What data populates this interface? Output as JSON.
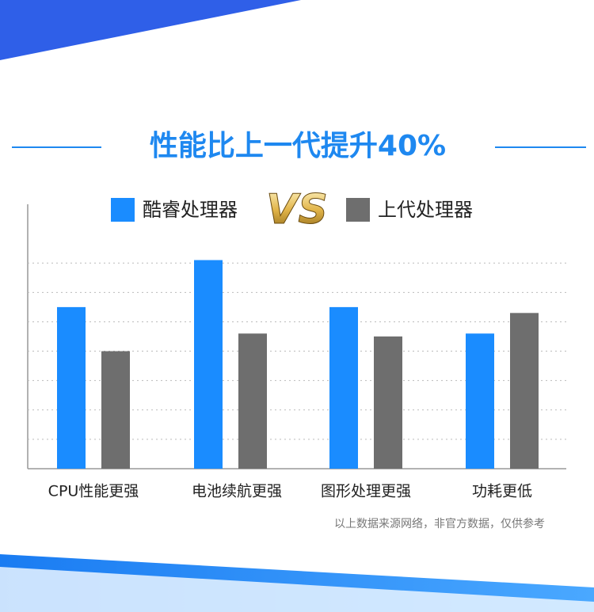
{
  "chart_data": {
    "type": "bar",
    "title": "性能比上一代提升40%",
    "vs_badge": "VS",
    "categories": [
      "CPU性能更强",
      "电池续航更强",
      "图形处理更强",
      "功耗更低"
    ],
    "series": [
      {
        "name": "酷睿处理器",
        "color": "#1a8cff",
        "values": [
          5.5,
          7.1,
          5.5,
          4.6
        ]
      },
      {
        "name": "上代处理器",
        "color": "#6e6e6e",
        "values": [
          4.0,
          4.6,
          4.5,
          5.3
        ]
      }
    ],
    "ylim": [
      0,
      9
    ],
    "yticks": [
      1,
      2,
      3,
      4,
      5,
      6,
      7
    ],
    "grid": true,
    "note": "以上数据来源网络，非官方数据，仅供参考"
  }
}
